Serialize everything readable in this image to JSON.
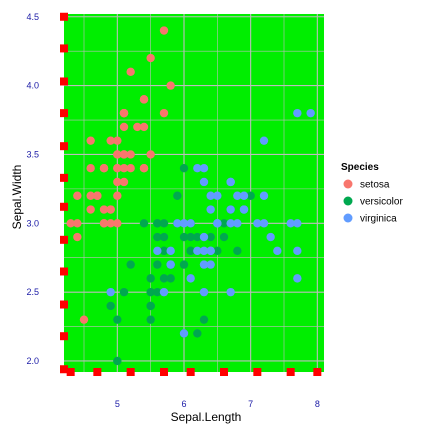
{
  "chart_data": {
    "type": "scatter",
    "xlabel": "Sepal.Length",
    "ylabel": "Sepal.Width",
    "xlim": [
      4.2,
      8.1
    ],
    "ylim": [
      1.92,
      4.52
    ],
    "x_ticks": [
      5,
      6,
      7,
      8
    ],
    "y_ticks": [
      2.0,
      2.5,
      3.0,
      3.5,
      4.0,
      4.5
    ],
    "x_tick_labels": [
      "5",
      "6",
      "7",
      "8"
    ],
    "y_tick_labels": [
      "2.0",
      "2.5",
      "3.0",
      "3.5",
      "4.0",
      "4.5"
    ],
    "grid": true,
    "panel_background": "#00ee00",
    "grid_color": "#bdbdbd",
    "tick_label_color": "#1a1aa6",
    "rug_color": "#ff0000",
    "legend": {
      "title": "Species",
      "position": "right",
      "entries": [
        {
          "label": "setosa",
          "color": "#f8766d"
        },
        {
          "label": "versicolor",
          "color": "#00a84f"
        },
        {
          "label": "virginica",
          "color": "#619cff"
        }
      ]
    },
    "series": [
      {
        "name": "setosa",
        "color": "#f8766d",
        "points": [
          [
            5.1,
            3.5
          ],
          [
            4.9,
            3.0
          ],
          [
            4.7,
            3.2
          ],
          [
            4.6,
            3.1
          ],
          [
            5.0,
            3.6
          ],
          [
            5.4,
            3.9
          ],
          [
            4.6,
            3.4
          ],
          [
            5.0,
            3.4
          ],
          [
            4.4,
            2.9
          ],
          [
            4.9,
            3.1
          ],
          [
            5.4,
            3.7
          ],
          [
            4.8,
            3.4
          ],
          [
            4.8,
            3.0
          ],
          [
            4.3,
            3.0
          ],
          [
            5.8,
            4.0
          ],
          [
            5.7,
            4.4
          ],
          [
            5.4,
            3.9
          ],
          [
            5.1,
            3.5
          ],
          [
            5.7,
            3.8
          ],
          [
            5.1,
            3.8
          ],
          [
            5.4,
            3.4
          ],
          [
            5.1,
            3.7
          ],
          [
            4.6,
            3.6
          ],
          [
            5.1,
            3.3
          ],
          [
            4.8,
            3.4
          ],
          [
            5.0,
            3.0
          ],
          [
            5.0,
            3.4
          ],
          [
            5.2,
            3.5
          ],
          [
            5.2,
            3.4
          ],
          [
            4.7,
            3.2
          ],
          [
            4.8,
            3.1
          ],
          [
            5.4,
            3.4
          ],
          [
            5.2,
            4.1
          ],
          [
            5.5,
            4.2
          ],
          [
            4.9,
            3.1
          ],
          [
            5.0,
            3.2
          ],
          [
            5.5,
            3.5
          ],
          [
            4.9,
            3.6
          ],
          [
            4.4,
            3.0
          ],
          [
            5.1,
            3.4
          ],
          [
            5.0,
            3.5
          ],
          [
            4.5,
            2.3
          ],
          [
            4.4,
            3.2
          ],
          [
            5.0,
            3.5
          ],
          [
            5.1,
            3.8
          ],
          [
            4.8,
            3.0
          ],
          [
            5.1,
            3.8
          ],
          [
            4.6,
            3.2
          ],
          [
            5.3,
            3.7
          ],
          [
            5.0,
            3.3
          ]
        ]
      },
      {
        "name": "versicolor",
        "color": "#00a84f",
        "points": [
          [
            7.0,
            3.2
          ],
          [
            6.4,
            3.2
          ],
          [
            6.9,
            3.1
          ],
          [
            5.5,
            2.3
          ],
          [
            6.5,
            2.8
          ],
          [
            5.7,
            2.8
          ],
          [
            6.3,
            3.3
          ],
          [
            4.9,
            2.4
          ],
          [
            6.6,
            2.9
          ],
          [
            5.2,
            2.7
          ],
          [
            5.0,
            2.0
          ],
          [
            5.9,
            3.0
          ],
          [
            6.0,
            2.2
          ],
          [
            6.1,
            2.9
          ],
          [
            5.6,
            2.9
          ],
          [
            6.7,
            3.1
          ],
          [
            5.6,
            3.0
          ],
          [
            5.8,
            2.7
          ],
          [
            6.2,
            2.2
          ],
          [
            5.6,
            2.5
          ],
          [
            5.9,
            3.2
          ],
          [
            6.1,
            2.8
          ],
          [
            6.3,
            2.5
          ],
          [
            6.1,
            2.8
          ],
          [
            6.4,
            2.9
          ],
          [
            6.6,
            3.0
          ],
          [
            6.8,
            2.8
          ],
          [
            6.7,
            3.0
          ],
          [
            6.0,
            2.9
          ],
          [
            5.7,
            2.6
          ],
          [
            5.5,
            2.4
          ],
          [
            5.5,
            2.4
          ],
          [
            5.8,
            2.7
          ],
          [
            6.0,
            2.7
          ],
          [
            5.4,
            3.0
          ],
          [
            6.0,
            3.4
          ],
          [
            6.7,
            3.1
          ],
          [
            6.3,
            2.3
          ],
          [
            5.6,
            3.0
          ],
          [
            5.5,
            2.5
          ],
          [
            5.5,
            2.6
          ],
          [
            6.1,
            3.0
          ],
          [
            5.8,
            2.6
          ],
          [
            5.0,
            2.3
          ],
          [
            5.6,
            2.7
          ],
          [
            5.7,
            3.0
          ],
          [
            5.7,
            2.9
          ],
          [
            6.2,
            2.9
          ],
          [
            5.1,
            2.5
          ],
          [
            5.7,
            2.8
          ]
        ]
      },
      {
        "name": "virginica",
        "color": "#619cff",
        "points": [
          [
            6.3,
            3.3
          ],
          [
            5.8,
            2.7
          ],
          [
            7.1,
            3.0
          ],
          [
            6.3,
            2.9
          ],
          [
            6.5,
            3.0
          ],
          [
            7.6,
            3.0
          ],
          [
            4.9,
            2.5
          ],
          [
            7.3,
            2.9
          ],
          [
            6.7,
            2.5
          ],
          [
            7.2,
            3.6
          ],
          [
            6.5,
            3.2
          ],
          [
            6.4,
            2.7
          ],
          [
            6.8,
            3.0
          ],
          [
            5.7,
            2.5
          ],
          [
            5.8,
            2.8
          ],
          [
            6.4,
            3.2
          ],
          [
            6.5,
            3.0
          ],
          [
            7.7,
            3.8
          ],
          [
            7.7,
            2.6
          ],
          [
            6.0,
            2.2
          ],
          [
            6.9,
            3.2
          ],
          [
            5.6,
            2.8
          ],
          [
            7.7,
            2.8
          ],
          [
            6.3,
            2.7
          ],
          [
            6.7,
            3.3
          ],
          [
            7.2,
            3.2
          ],
          [
            6.2,
            2.8
          ],
          [
            6.1,
            3.0
          ],
          [
            6.4,
            2.8
          ],
          [
            7.2,
            3.0
          ],
          [
            7.4,
            2.8
          ],
          [
            7.9,
            3.8
          ],
          [
            6.4,
            2.8
          ],
          [
            6.3,
            2.8
          ],
          [
            6.1,
            2.6
          ],
          [
            7.7,
            3.0
          ],
          [
            6.3,
            3.4
          ],
          [
            6.4,
            3.1
          ],
          [
            6.0,
            3.0
          ],
          [
            6.9,
            3.1
          ],
          [
            6.7,
            3.1
          ],
          [
            6.9,
            3.1
          ],
          [
            5.8,
            2.7
          ],
          [
            6.8,
            3.2
          ],
          [
            6.7,
            3.3
          ],
          [
            6.7,
            3.0
          ],
          [
            6.3,
            2.5
          ],
          [
            6.5,
            3.0
          ],
          [
            6.2,
            3.4
          ],
          [
            5.9,
            3.0
          ]
        ]
      }
    ],
    "rug_x": [
      4.3,
      4.7,
      5.2,
      5.7,
      6.1,
      6.6,
      7.1,
      7.6,
      8.0
    ],
    "rug_y": [
      1.94,
      2.18,
      2.41,
      2.65,
      2.88,
      3.12,
      3.33,
      3.56,
      3.8,
      4.03,
      4.27,
      4.5
    ]
  }
}
